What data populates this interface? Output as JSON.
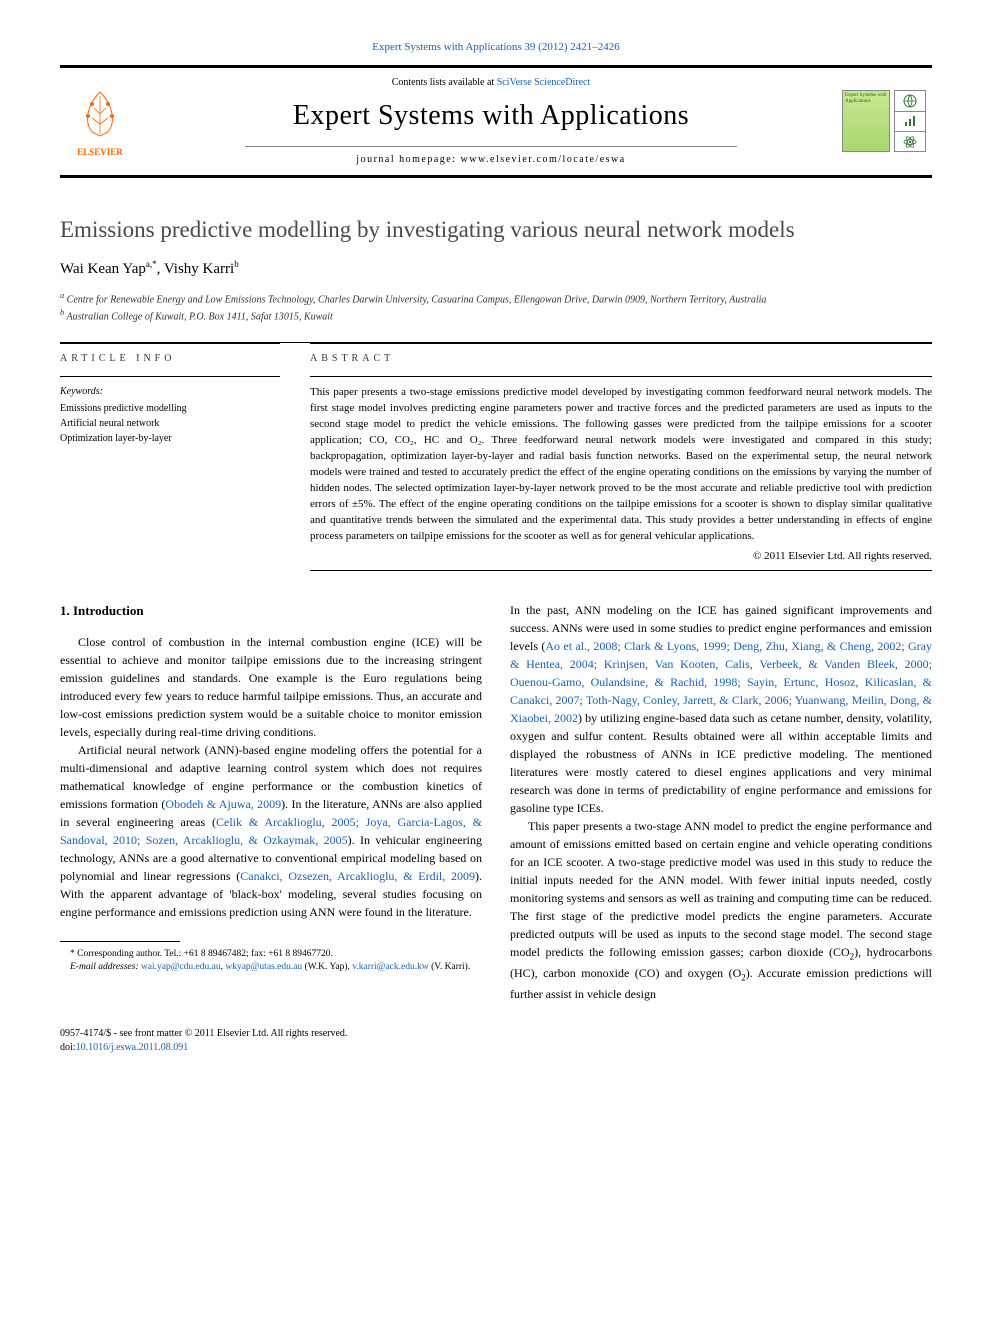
{
  "journal_ref": "Expert Systems with Applications 39 (2012) 2421–2426",
  "masthead": {
    "elsevier": "ELSEVIER",
    "contents_prefix": "Contents lists available at ",
    "contents_link": "SciVerse ScienceDirect",
    "journal_title": "Expert Systems with Applications",
    "homepage": "journal homepage: www.elsevier.com/locate/eswa",
    "cover_text": "Expert Systems with Applications"
  },
  "article": {
    "title": "Emissions predictive modelling by investigating various neural network models",
    "authors_html": "Wai Kean Yap",
    "author1_sup": "a,*",
    "author2": "Vishy Karri",
    "author2_sup": "b",
    "affiliations": [
      "Centre for Renewable Energy and Low Emissions Technology, Charles Darwin University, Casuarina Campus, Ellengowan Drive, Darwin 0909, Northern Territory, Australia",
      "Australian College of Kuwait, P.O. Box 1411, Safat 13015, Kuwait"
    ]
  },
  "info": {
    "article_info_heading": "ARTICLE INFO",
    "abstract_heading": "ABSTRACT",
    "keywords_label": "Keywords:",
    "keywords": [
      "Emissions predictive modelling",
      "Artificial neural network",
      "Optimization layer-by-layer"
    ],
    "abstract": "This paper presents a two-stage emissions predictive model developed by investigating common feedforward neural network models. The first stage model involves predicting engine parameters power and tractive forces and the predicted parameters are used as inputs to the second stage model to predict the vehicle emissions. The following gasses were predicted from the tailpipe emissions for a scooter application; CO, CO₂, HC and O₂. Three feedforward neural network models were investigated and compared in this study; backpropagation, optimization layer-by-layer and radial basis function networks. Based on the experimental setup, the neural network models were trained and tested to accurately predict the effect of the engine operating conditions on the emissions by varying the number of hidden nodes. The selected optimization layer-by-layer network proved to be the most accurate and reliable predictive tool with prediction errors of ±5%. The effect of the engine operating conditions on the tailpipe emissions for a scooter is shown to display similar qualitative and quantitative trends between the simulated and the experimental data. This study provides a better understanding in effects of engine process parameters on tailpipe emissions for the scooter as well as for general vehicular applications.",
    "copyright": "© 2011 Elsevier Ltd. All rights reserved."
  },
  "section1": {
    "heading": "1. Introduction",
    "paragraphs_left": [
      "Close control of combustion in the internal combustion engine (ICE) will be essential to achieve and monitor tailpipe emissions due to the increasing stringent emission guidelines and standards. One example is the Euro regulations being introduced every few years to reduce harmful tailpipe emissions. Thus, an accurate and low-cost emissions prediction system would be a suitable choice to monitor emission levels, especially during real-time driving conditions.",
      "Artificial neural network (ANN)-based engine modeling offers the potential for a multi-dimensional and adaptive learning control system which does not requires mathematical knowledge of engine performance or the combustion kinetics of emissions formation (<span class=\"ref\">Obodeh & Ajuwa, 2009</span>). In the literature, ANNs are also applied in several engineering areas (<span class=\"ref\">Celik & Arcaklioglu, 2005; Joya, Garcia-Lagos, & Sandoval, 2010; Sozen, Arcaklioglu, & Ozkaymak, 2005</span>). In vehicular engineering technology, ANNs are a good alternative to conventional empirical modeling based on polynomial and linear regressions (<span class=\"ref\">Canakci, Ozsezen, Arcaklioglu, & Erdil, 2009</span>). With the apparent advantage of 'black-box' modeling, several studies focusing on engine performance and emissions prediction using ANN were found in the literature."
    ],
    "paragraphs_right": [
      "In the past, ANN modeling on the ICE has gained significant improvements and success. ANNs were used in some studies to predict engine performances and emission levels (<span class=\"ref\">Ao et al., 2008; Clark & Lyons, 1999; Deng, Zhu, Xiang, & Cheng, 2002; Gray & Hentea, 2004; Krinjsen, Van Kooten, Calis, Verbeek, & Vanden Bleek, 2000; Ouenou-Gamo, Oulandsine, & Rachid, 1998; Sayin, Ertunc, Hosoz, Kilicaslan, & Canakci, 2007; Toth-Nagy, Conley, Jarrett, & Clark, 2006; Yuanwang, Meilin, Dong, & Xiaobei, 2002</span>) by utilizing engine-based data such as cetane number, density, volatility, oxygen and sulfur content. Results obtained were all within acceptable limits and displayed the robustness of ANNs in ICE predictive modeling. The mentioned literatures were mostly catered to diesel engines applications and very minimal research was done in terms of predictability of engine performance and emissions for gasoline type ICEs.",
      "This paper presents a two-stage ANN model to predict the engine performance and amount of emissions emitted based on certain engine and vehicle operating conditions for an ICE scooter. A two-stage predictive model was used in this study to reduce the initial inputs needed for the ANN model. With fewer initial inputs needed, costly monitoring systems and sensors as well as training and computing time can be reduced. The first stage of the predictive model predicts the engine parameters. Accurate predicted outputs will be used as inputs to the second stage model. The second stage model predicts the following emission gasses; carbon dioxide (CO<sub>2</sub>), hydrocarbons (HC), carbon monoxide (CO) and oxygen (O<sub>2</sub>). Accurate emission predictions will further assist in vehicle design"
    ]
  },
  "footnotes": {
    "corresponding": "* Corresponding author. Tel.: +61 8 89467482; fax: +61 8 89467720.",
    "email_label": "E-mail addresses:",
    "email1": "wai.yap@cdu.edu.au",
    "email2": "wkyap@utas.edu.au",
    "email1_paren": "(W.K. Yap),",
    "email3": "v.karri@ack.edu.kw",
    "email3_paren": "(V. Karri)."
  },
  "footer": {
    "line1": "0957-4174/$ - see front matter © 2011 Elsevier Ltd. All rights reserved.",
    "doi_label": "doi:",
    "doi": "10.1016/j.eswa.2011.08.091"
  },
  "colors": {
    "link": "#1a5fb4",
    "elsevier": "#ff6600",
    "cover_bg": "#c8e890"
  }
}
